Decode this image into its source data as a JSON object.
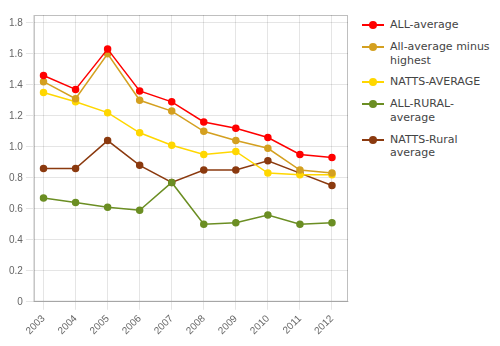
{
  "chart_data": {
    "type": "line",
    "x": [
      2003,
      2004,
      2005,
      2006,
      2007,
      2008,
      2009,
      2010,
      2011,
      2012
    ],
    "xlim": [
      2002.7,
      2012.5
    ],
    "xticks": [
      2003,
      2004,
      2005,
      2006,
      2007,
      2008,
      2009,
      2010,
      2011,
      2012
    ],
    "ylim": [
      0,
      1.85
    ],
    "yticks": [
      0,
      0.2,
      0.4,
      0.6,
      0.8,
      {
        "value": 1.0,
        "label": "1.0"
      },
      1.2,
      1.4,
      1.6,
      1.8
    ],
    "grid": true,
    "legend": "upper right",
    "series": [
      {
        "name": "ALL-average",
        "color": "#FF0000",
        "marker": "circle",
        "values": [
          1.46,
          1.37,
          1.63,
          1.36,
          1.29,
          1.16,
          1.12,
          1.06,
          0.95,
          0.93
        ]
      },
      {
        "name": "All-average minus\nhighest",
        "color": "#D4A020",
        "marker": "circle",
        "values": [
          1.42,
          1.31,
          1.6,
          1.3,
          1.23,
          1.1,
          1.04,
          0.99,
          0.85,
          0.83
        ]
      },
      {
        "name": "NATTS-AVERAGE",
        "color": "#FFD700",
        "marker": "circle",
        "values": [
          1.35,
          1.29,
          1.22,
          1.09,
          1.01,
          0.95,
          0.97,
          0.83,
          0.82,
          0.82
        ]
      },
      {
        "name": "ALL-RURAL-average",
        "color": "#6B8E23",
        "marker": "circle",
        "values": [
          0.67,
          0.64,
          0.61,
          0.59,
          0.77,
          0.5,
          0.51,
          0.56,
          0.5,
          0.51
        ]
      },
      {
        "name": "NATTS-Rural average",
        "color": "#8B3A0F",
        "marker": "circle",
        "values": [
          0.86,
          0.86,
          1.04,
          0.88,
          0.77,
          0.85,
          0.85,
          0.91,
          0.83,
          0.75
        ]
      }
    ]
  }
}
